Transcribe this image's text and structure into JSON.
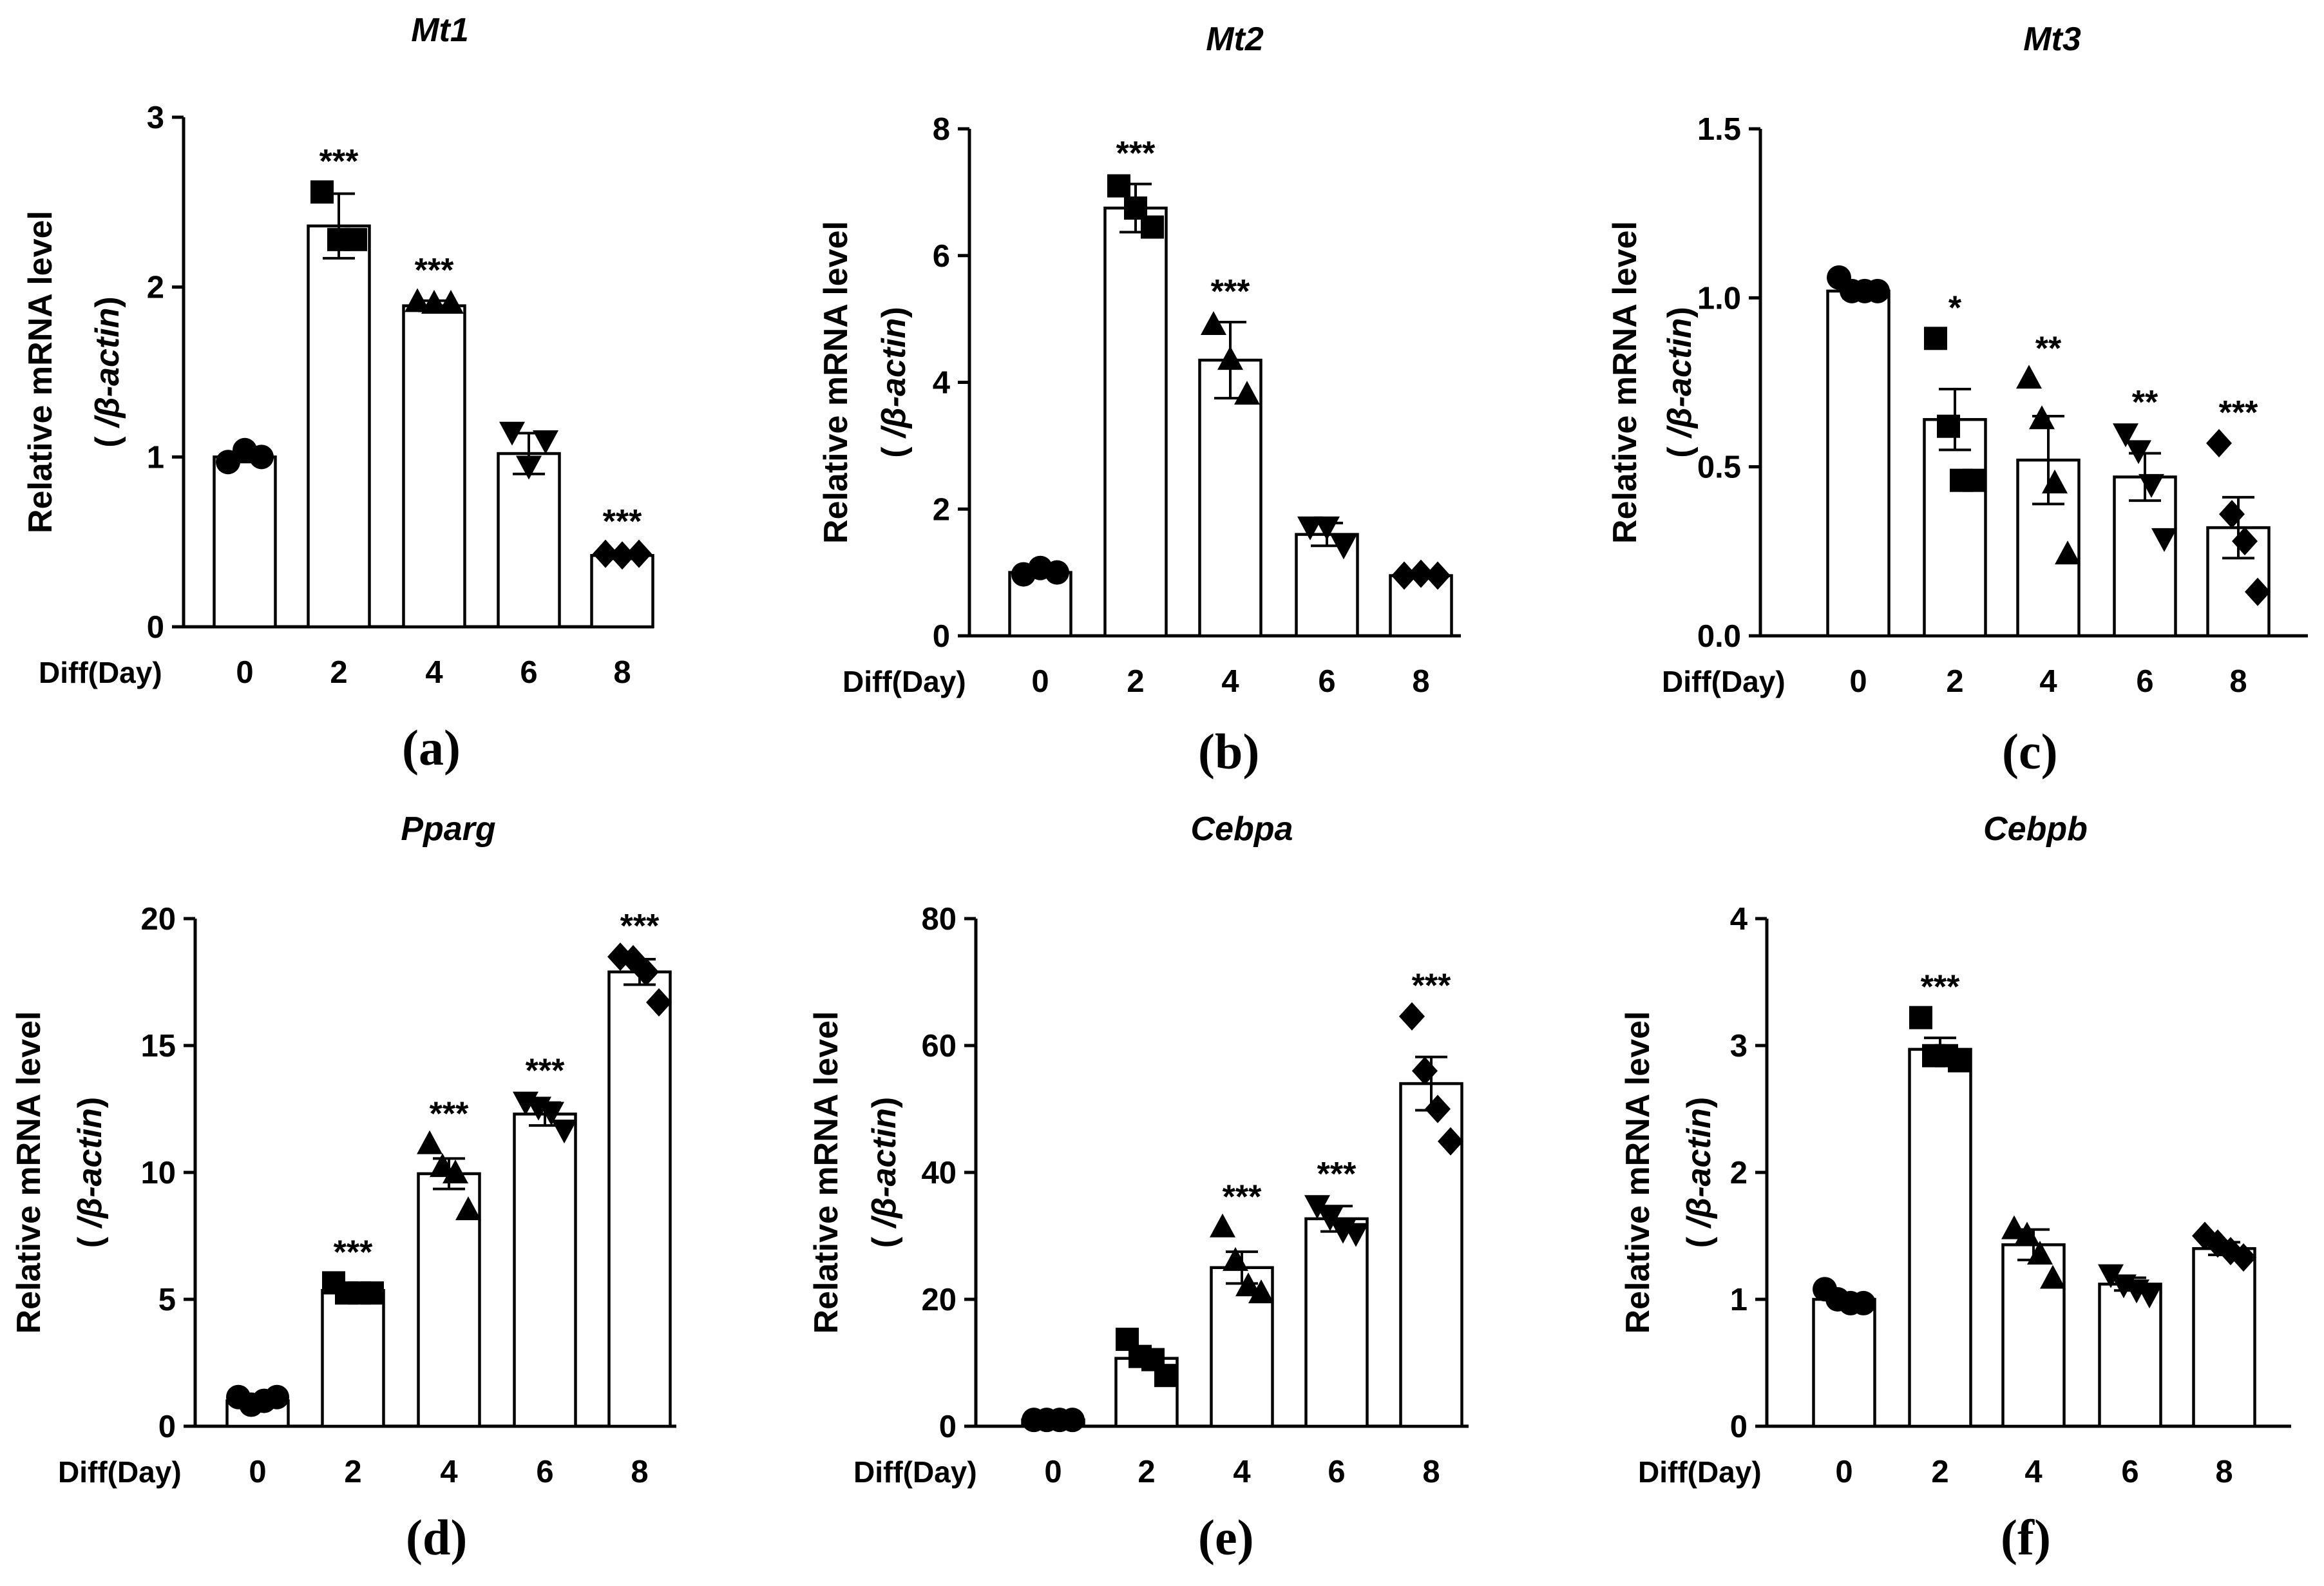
{
  "figure": {
    "x_prefix": "Diff(Day)",
    "y_label_line1": "Relative mRNA level",
    "y_label_line2_open": "(",
    "y_label_line2_italic": "/β-actin",
    "y_label_line2_close": ")",
    "color": "#000000"
  },
  "chart_data": [
    {
      "type": "bar",
      "letter": "(a)",
      "title": "Mt1",
      "xlabel": "Diff(Day)",
      "ylabel": "Relative mRNA level (/β-actin)",
      "ylim": [
        0,
        3
      ],
      "yticks": [
        "0",
        "1",
        "2",
        "3"
      ],
      "categories": [
        "0",
        "2",
        "4",
        "6",
        "8"
      ],
      "values": [
        1.0,
        2.36,
        1.89,
        1.02,
        0.42
      ],
      "error": [
        0.03,
        0.19,
        0.03,
        0.12,
        0.02
      ],
      "points": [
        [
          0.97,
          1.04,
          1.0
        ],
        [
          2.56,
          2.28,
          2.28
        ],
        [
          1.91,
          1.9,
          1.9
        ],
        [
          1.15,
          0.95,
          1.1
        ],
        [
          0.43,
          0.42,
          0.43
        ]
      ],
      "markers": [
        "circle",
        "square",
        "triangle",
        "triangle-down",
        "diamond"
      ],
      "significance": [
        "",
        "***",
        "***",
        "",
        "***"
      ]
    },
    {
      "type": "bar",
      "letter": "(b)",
      "title": "Mt2",
      "xlabel": "Diff(Day)",
      "ylabel": "Relative mRNA level (/β-actin)",
      "ylim": [
        0,
        8
      ],
      "yticks": [
        "0",
        "2",
        "4",
        "6",
        "8"
      ],
      "categories": [
        "0",
        "2",
        "4",
        "6",
        "8"
      ],
      "values": [
        1.0,
        6.75,
        4.35,
        1.6,
        0.95
      ],
      "error": [
        0.06,
        0.38,
        0.6,
        0.18,
        0.04
      ],
      "points": [
        [
          0.97,
          1.07,
          1.0
        ],
        [
          7.1,
          6.75,
          6.45
        ],
        [
          4.9,
          4.35,
          3.8
        ],
        [
          1.73,
          1.73,
          1.43
        ],
        [
          0.95,
          0.98,
          0.95
        ]
      ],
      "markers": [
        "circle",
        "square",
        "triangle",
        "triangle-down",
        "diamond"
      ],
      "significance": [
        "",
        "***",
        "***",
        "",
        ""
      ]
    },
    {
      "type": "bar",
      "letter": "(c)",
      "title": "Mt3",
      "xlabel": "Diff(Day)",
      "ylabel": "Relative mRNA level (/β-actin)",
      "ylim": [
        0,
        1.5
      ],
      "yticks": [
        "0.0",
        "0.5",
        "1.0",
        "1.5"
      ],
      "categories": [
        "0",
        "2",
        "4",
        "6",
        "8"
      ],
      "values": [
        1.02,
        0.64,
        0.52,
        0.47,
        0.32
      ],
      "error": [
        0.02,
        0.09,
        0.13,
        0.07,
        0.09
      ],
      "points": [
        [
          1.06,
          1.02,
          1.02,
          1.02
        ],
        [
          0.88,
          0.62,
          0.46,
          0.46
        ],
        [
          0.76,
          0.64,
          0.45,
          0.24
        ],
        [
          0.6,
          0.55,
          0.45,
          0.29
        ],
        [
          0.57,
          0.36,
          0.28,
          0.13
        ]
      ],
      "markers": [
        "circle",
        "square",
        "triangle",
        "triangle-down",
        "diamond"
      ],
      "significance": [
        "",
        "*",
        "**",
        "**",
        "***"
      ]
    },
    {
      "type": "bar",
      "letter": "(d)",
      "title": "Pparg",
      "xlabel": "Diff(Day)",
      "ylabel": "Relative mRNA level (/β-actin)",
      "ylim": [
        0,
        20
      ],
      "yticks": [
        "0",
        "5",
        "10",
        "15",
        "20"
      ],
      "categories": [
        "0",
        "2",
        "4",
        "6",
        "8"
      ],
      "values": [
        1.0,
        5.35,
        9.95,
        12.3,
        17.9
      ],
      "error": [
        0.12,
        0.2,
        0.6,
        0.45,
        0.5
      ],
      "points": [
        [
          1.15,
          0.85,
          1.0,
          1.15
        ],
        [
          5.65,
          5.25,
          5.25,
          5.25
        ],
        [
          11.1,
          10.2,
          9.95,
          8.5
        ],
        [
          12.8,
          12.6,
          12.4,
          11.7
        ],
        [
          18.5,
          18.4,
          17.9,
          16.7
        ]
      ],
      "markers": [
        "circle",
        "square",
        "triangle",
        "triangle-down",
        "diamond"
      ],
      "significance": [
        "",
        "***",
        "***",
        "***",
        "***"
      ]
    },
    {
      "type": "bar",
      "letter": "(e)",
      "title": "Cebpa",
      "xlabel": "Diff(Day)",
      "ylabel": "Relative mRNA level (/β-actin)",
      "ylim": [
        0,
        80
      ],
      "yticks": [
        "0",
        "20",
        "40",
        "60",
        "80"
      ],
      "categories": [
        "0",
        "2",
        "4",
        "6",
        "8"
      ],
      "values": [
        1.0,
        10.7,
        25.0,
        32.7,
        54.0
      ],
      "error": [
        0.1,
        1.3,
        2.5,
        2.0,
        4.2
      ],
      "points": [
        [
          1.0,
          1.0,
          1.0,
          1.0
        ],
        [
          13.7,
          11.0,
          10.5,
          8.0
        ],
        [
          31.3,
          26.0,
          22.0,
          20.9
        ],
        [
          34.9,
          33.0,
          31.0,
          30.5
        ],
        [
          64.6,
          56.0,
          50.0,
          44.9
        ]
      ],
      "markers": [
        "circle",
        "square",
        "triangle",
        "triangle-down",
        "diamond"
      ],
      "significance": [
        "",
        "",
        "***",
        "***",
        "***"
      ]
    },
    {
      "type": "bar",
      "letter": "(f)",
      "title": "Cebpb",
      "xlabel": "Diff(Day)",
      "ylabel": "Relative mRNA level (/β-actin)",
      "ylim": [
        0,
        4
      ],
      "yticks": [
        "0",
        "1",
        "2",
        "3",
        "4"
      ],
      "categories": [
        "0",
        "2",
        "4",
        "6",
        "8"
      ],
      "values": [
        1.0,
        2.97,
        1.43,
        1.12,
        1.4
      ],
      "error": [
        0.04,
        0.09,
        0.12,
        0.05,
        0.05
      ],
      "points": [
        [
          1.08,
          1.0,
          0.97,
          0.97
        ],
        [
          3.22,
          2.92,
          2.92,
          2.88
        ],
        [
          1.55,
          1.5,
          1.35,
          1.16
        ],
        [
          1.2,
          1.12,
          1.08,
          1.04
        ],
        [
          1.5,
          1.44,
          1.38,
          1.33
        ]
      ],
      "markers": [
        "circle",
        "square",
        "triangle",
        "triangle-down",
        "diamond"
      ],
      "significance": [
        "",
        "***",
        "",
        "",
        ""
      ]
    }
  ]
}
